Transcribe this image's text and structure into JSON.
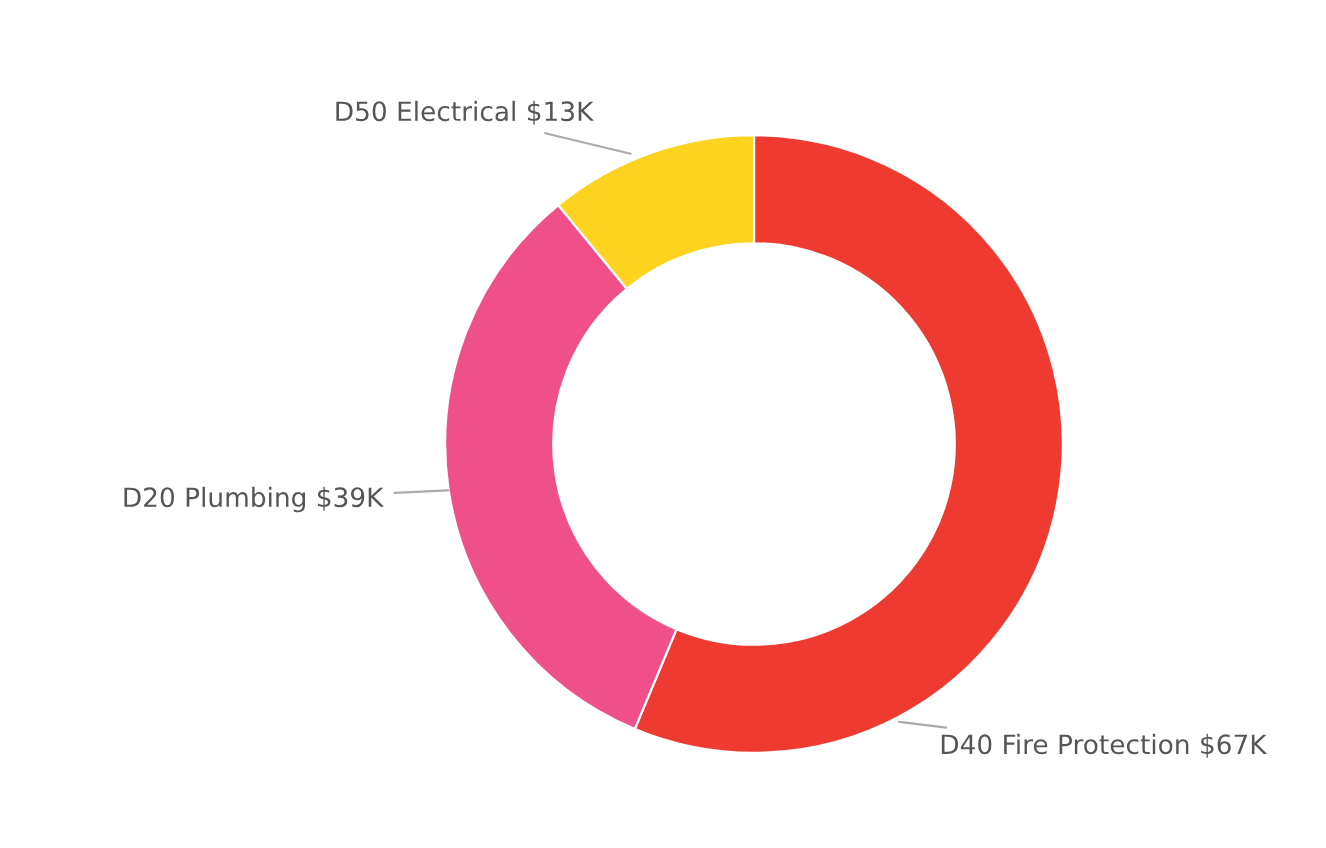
{
  "chart_data": {
    "type": "donut",
    "categories": [
      "D40 Fire Protection",
      "D20 Plumbing",
      "D50 Electrical"
    ],
    "values": [
      67,
      39,
      13
    ],
    "colors": [
      "#ee3a30",
      "#f0508a",
      "#fdd31f"
    ],
    "value_labels": [
      "$67K",
      "$39K",
      "$13K"
    ]
  }
}
